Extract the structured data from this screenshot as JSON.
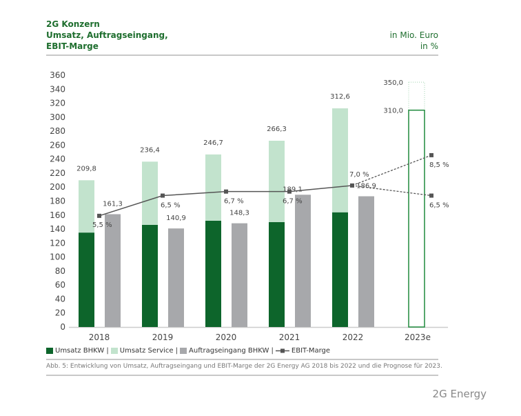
{
  "header": {
    "line1": "2G Konzern",
    "line2": "Umsatz, Auftragseingang,",
    "line3": "EBIT-Marge",
    "unit1": "in Mio. Euro",
    "unit2": "in %"
  },
  "chart_data": {
    "type": "bar",
    "categories": [
      "2018",
      "2019",
      "2020",
      "2021",
      "2022",
      "2023e"
    ],
    "ylim": [
      0,
      360
    ],
    "yticks": [
      0,
      20,
      40,
      60,
      80,
      100,
      120,
      140,
      160,
      180,
      200,
      220,
      240,
      260,
      280,
      300,
      320,
      340,
      360
    ],
    "grid": false,
    "legend_placement": "bottom",
    "series": [
      {
        "name": "Umsatz BHKW",
        "type": "stacked-bar",
        "color": "#0d652b",
        "values": [
          135,
          146,
          152,
          150,
          164,
          null
        ]
      },
      {
        "name": "Umsatz Service",
        "type": "stacked-bar",
        "color": "#c2e3cd",
        "values": [
          74.8,
          90.4,
          94.7,
          116.3,
          148.6,
          null
        ]
      },
      {
        "name": "Auftragseingang BHKW",
        "type": "bar",
        "color": "#a7a8ab",
        "values": [
          161.3,
          140.9,
          148.3,
          189.1,
          186.9,
          null
        ]
      }
    ],
    "umsatz_total_labels": [
      "209,8",
      "236,4",
      "246,7",
      "266,3",
      "312,6"
    ],
    "auftrag_labels": [
      "161,3",
      "140,9",
      "148,3",
      "189,1",
      "186,9"
    ],
    "forecast_2023e": {
      "low": 310.0,
      "high": 350.0,
      "low_label": "310,0",
      "high_label": "350,0",
      "color": "#1e8a3c"
    },
    "ebit_marge": {
      "name": "EBIT-Marge",
      "color": "#555555",
      "values": [
        5.5,
        6.5,
        6.7,
        6.7,
        7.0
      ],
      "labels": [
        "5,5 %",
        "6,5 %",
        "6,7 %",
        "6,7 %",
        "7,0 %"
      ],
      "forecast": [
        8.5,
        6.5
      ],
      "forecast_labels": [
        "8,5 %",
        "6,5 %"
      ]
    }
  },
  "legend": [
    "Umsatz BHKW |",
    "Umsatz Service |",
    "Auftragseingang BHKW |",
    "EBIT-Marge"
  ],
  "caption": "Abb. 5: Entwicklung von Umsatz, Auftragseingang und EBIT-Marge der 2G Energy AG 2018 bis 2022 und die Prognose für 2023.",
  "brand": "2G Energy"
}
